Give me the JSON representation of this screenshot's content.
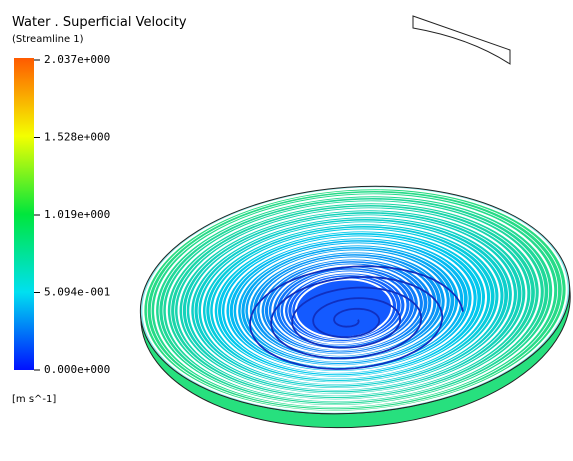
{
  "legend": {
    "title": "Water . Superficial  Velocity",
    "subtitle": "(Streamline  1)",
    "ticks": [
      "2.037e+000",
      "1.528e+000",
      "1.019e+000",
      "5.094e-001",
      "0.000e+000"
    ],
    "unit": "[m  s^-1]"
  }
}
